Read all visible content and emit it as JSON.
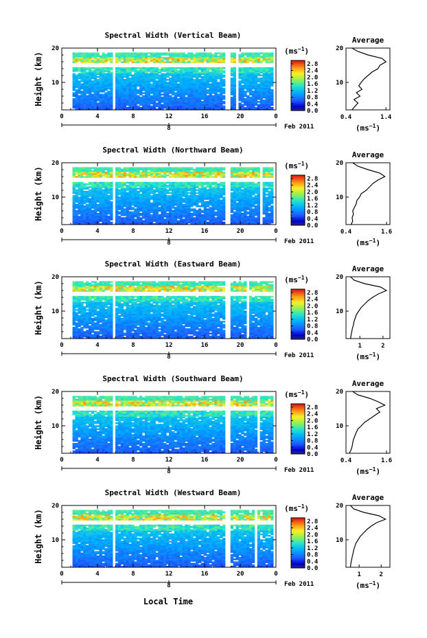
{
  "figure": {
    "xlabel_bottom": "Local Time",
    "date_label": "Feb 2011",
    "day_marker": "8",
    "colorbar_unit": "(ms",
    "colorbar_exp": "−1",
    "average_title": "Average",
    "average_xlabel": "(ms",
    "average_xlabel_exp": "−1",
    "average_xlabel_close": ")"
  },
  "chart_data": [
    {
      "type": "heatmap",
      "title": "Spectral Width (Vertical Beam)",
      "ylabel": "Height (km)",
      "xticks": [
        "0",
        "4",
        "8",
        "12",
        "16",
        "20",
        "0"
      ],
      "yticks": [
        "10",
        "20"
      ],
      "xlim": [
        0,
        24
      ],
      "ylim": [
        2,
        20
      ],
      "gaps_hours": [
        [
          5.6,
          6.1
        ],
        [
          18.3,
          18.8
        ],
        [
          19.5,
          19.9
        ]
      ],
      "colorbar_ticks": [
        "0.0",
        "0.4",
        "0.8",
        "1.2",
        "1.6",
        "2.0",
        "2.4",
        "2.8"
      ],
      "clim": [
        0.0,
        3.0
      ],
      "average": {
        "xticks": [
          "0.4",
          "1.4"
        ],
        "xlim": [
          0.4,
          1.5
        ],
        "height_km": [
          2,
          3,
          4,
          5,
          6,
          7,
          8,
          9,
          10,
          11,
          12,
          13,
          14,
          15,
          16,
          17,
          18,
          19,
          20
        ],
        "width": [
          0.55,
          0.62,
          0.7,
          0.6,
          0.75,
          0.66,
          0.8,
          0.72,
          0.78,
          0.85,
          0.95,
          1.05,
          1.2,
          1.25,
          1.4,
          1.3,
          0.95,
          0.7,
          0.55
        ]
      }
    },
    {
      "type": "heatmap",
      "title": "Spectral Width (Northward Beam)",
      "ylabel": "Height (km)",
      "xticks": [
        "0",
        "4",
        "8",
        "12",
        "16",
        "20",
        "0"
      ],
      "yticks": [
        "10",
        "20"
      ],
      "xlim": [
        0,
        24
      ],
      "ylim": [
        2,
        20
      ],
      "gaps_hours": [
        [
          5.6,
          6.1
        ],
        [
          18.3,
          18.8
        ],
        [
          22.2,
          22.5
        ]
      ],
      "colorbar_ticks": [
        "0.0",
        "0.4",
        "0.8",
        "1.2",
        "1.6",
        "2.0",
        "2.4",
        "2.8"
      ],
      "clim": [
        0.0,
        3.0
      ],
      "average": {
        "xticks": [
          "0.4",
          "1.6"
        ],
        "xlim": [
          0.4,
          1.7
        ],
        "height_km": [
          2,
          3,
          4,
          5,
          6,
          7,
          8,
          9,
          10,
          11,
          12,
          13,
          14,
          15,
          16,
          17,
          18,
          19,
          20
        ],
        "width": [
          0.55,
          0.6,
          0.58,
          0.62,
          0.6,
          0.65,
          0.7,
          0.72,
          0.8,
          0.85,
          1.0,
          1.1,
          1.2,
          1.35,
          1.55,
          1.4,
          1.05,
          0.75,
          0.6
        ]
      }
    },
    {
      "type": "heatmap",
      "title": "Spectral Width (Eastward Beam)",
      "ylabel": "Height (km)",
      "xticks": [
        "0",
        "4",
        "8",
        "12",
        "16",
        "20",
        "0"
      ],
      "yticks": [
        "10",
        "20"
      ],
      "xlim": [
        0,
        24
      ],
      "ylim": [
        2,
        20
      ],
      "gaps_hours": [
        [
          5.6,
          6.1
        ],
        [
          18.3,
          18.8
        ],
        [
          20.6,
          20.9
        ]
      ],
      "colorbar_ticks": [
        "0.0",
        "0.4",
        "0.8",
        "1.2",
        "1.6",
        "2.0",
        "2.4",
        "2.8"
      ],
      "clim": [
        0.0,
        3.0
      ],
      "average": {
        "xticks": [
          "1",
          "2"
        ],
        "xlim": [
          0.4,
          2.3
        ],
        "height_km": [
          2,
          3,
          4,
          5,
          6,
          7,
          8,
          9,
          10,
          11,
          12,
          13,
          14,
          15,
          16,
          17,
          18,
          19,
          20
        ],
        "width": [
          0.6,
          0.62,
          0.65,
          0.68,
          0.72,
          0.75,
          0.8,
          0.85,
          0.95,
          1.05,
          1.2,
          1.35,
          1.55,
          1.8,
          2.15,
          1.9,
          1.2,
          0.75,
          0.6
        ]
      }
    },
    {
      "type": "heatmap",
      "title": "Spectral Width (Southward Beam)",
      "ylabel": "Height (km)",
      "xticks": [
        "0",
        "4",
        "8",
        "12",
        "16",
        "20",
        "0"
      ],
      "yticks": [
        "10",
        "20"
      ],
      "xlim": [
        0,
        24
      ],
      "ylim": [
        2,
        20
      ],
      "gaps_hours": [
        [
          5.6,
          6.1
        ],
        [
          18.3,
          18.8
        ],
        [
          21.8,
          22.1
        ]
      ],
      "colorbar_ticks": [
        "0.0",
        "0.4",
        "0.8",
        "1.2",
        "1.6",
        "2.0",
        "2.4",
        "2.8"
      ],
      "clim": [
        0.0,
        3.0
      ],
      "average": {
        "xticks": [
          "0.4",
          "1.6"
        ],
        "xlim": [
          0.4,
          1.7
        ],
        "height_km": [
          2,
          3,
          4,
          5,
          6,
          7,
          8,
          9,
          10,
          11,
          12,
          13,
          14,
          15,
          16,
          17,
          18,
          19,
          20
        ],
        "width": [
          0.5,
          0.55,
          0.58,
          0.6,
          0.62,
          0.66,
          0.7,
          0.75,
          0.85,
          0.95,
          1.1,
          1.25,
          1.4,
          1.3,
          1.55,
          1.35,
          1.1,
          0.75,
          0.6
        ]
      }
    },
    {
      "type": "heatmap",
      "title": "Spectral Width (Westward Beam)",
      "ylabel": "Height (km)",
      "xticks": [
        "0",
        "4",
        "8",
        "12",
        "16",
        "20",
        "0"
      ],
      "yticks": [
        "10",
        "20"
      ],
      "xlim": [
        0,
        24
      ],
      "ylim": [
        2,
        20
      ],
      "gaps_hours": [
        [
          5.6,
          6.1
        ],
        [
          18.3,
          18.8
        ],
        [
          21.5,
          21.8
        ]
      ],
      "colorbar_ticks": [
        "0.0",
        "0.4",
        "0.8",
        "1.2",
        "1.6",
        "2.0",
        "2.4",
        "2.8"
      ],
      "clim": [
        0.0,
        3.0
      ],
      "average": {
        "xticks": [
          "1",
          "2"
        ],
        "xlim": [
          0.4,
          2.4
        ],
        "height_km": [
          2,
          3,
          4,
          5,
          6,
          7,
          8,
          9,
          10,
          11,
          12,
          13,
          14,
          15,
          16,
          17,
          18,
          19,
          20
        ],
        "width": [
          0.6,
          0.62,
          0.65,
          0.68,
          0.72,
          0.75,
          0.8,
          0.85,
          0.95,
          1.05,
          1.2,
          1.35,
          1.55,
          1.8,
          2.2,
          1.9,
          1.2,
          0.75,
          0.6
        ]
      }
    }
  ]
}
